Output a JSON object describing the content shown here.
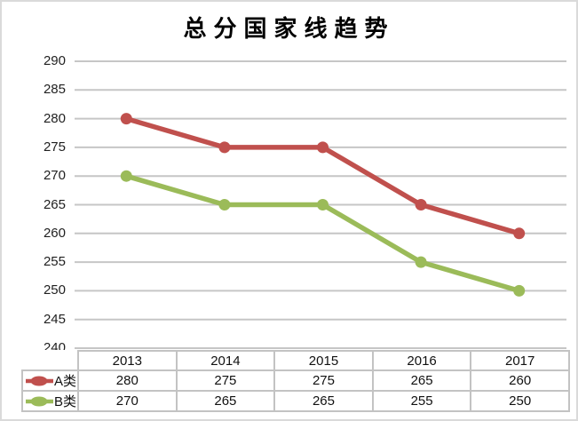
{
  "title": "总分国家线趋势",
  "colors": {
    "grid": "#C6C6C6",
    "table_border": "#C3C3C3",
    "frame_border": "#DADADA",
    "text": "#1F1F1F"
  },
  "chart_data": {
    "type": "line",
    "title": "总分国家线趋势",
    "categories": [
      "2013",
      "2014",
      "2015",
      "2016",
      "2017"
    ],
    "series": [
      {
        "name": "A类",
        "color": "#C0504D",
        "values": [
          280,
          275,
          275,
          265,
          260
        ]
      },
      {
        "name": "B类",
        "color": "#9BBB59",
        "values": [
          270,
          265,
          265,
          255,
          250
        ]
      }
    ],
    "ylim": [
      240,
      290
    ],
    "ytick_step": 5,
    "yticks": [
      290,
      285,
      280,
      275,
      270,
      265,
      260,
      255,
      250,
      245,
      240
    ],
    "grid": true,
    "legend_position": "table-left",
    "xlabel": "",
    "ylabel": ""
  }
}
